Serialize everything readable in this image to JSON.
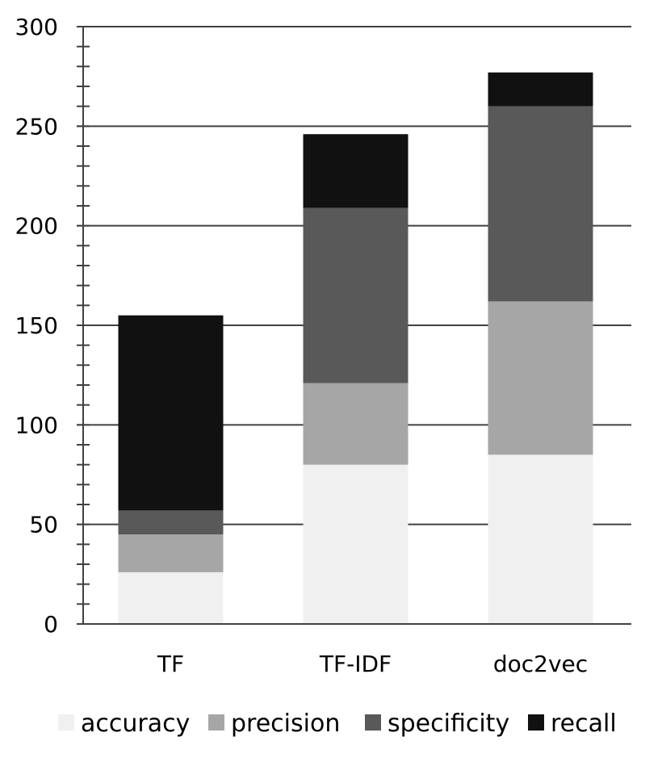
{
  "chart_data": {
    "type": "bar",
    "stacked": true,
    "title": "",
    "xlabel": "",
    "ylabel": "",
    "categories": [
      "TF",
      "TF-IDF",
      "doc2vec"
    ],
    "ylim": [
      0,
      300
    ],
    "yticks": [
      "0",
      "50",
      "100",
      "150",
      "200",
      "250",
      "300"
    ],
    "grid": true,
    "legend_position": "bottom",
    "series": [
      {
        "name": "accuracy",
        "color": "#f0f0f0",
        "values": [
          26,
          80,
          85
        ]
      },
      {
        "name": "precision",
        "color": "#a6a6a6",
        "values": [
          19,
          41,
          77
        ]
      },
      {
        "name": "specificity",
        "color": "#595959",
        "values": [
          12,
          88,
          98
        ]
      },
      {
        "name": "recall",
        "color": "#111111",
        "values": [
          98,
          37,
          17
        ]
      }
    ]
  }
}
